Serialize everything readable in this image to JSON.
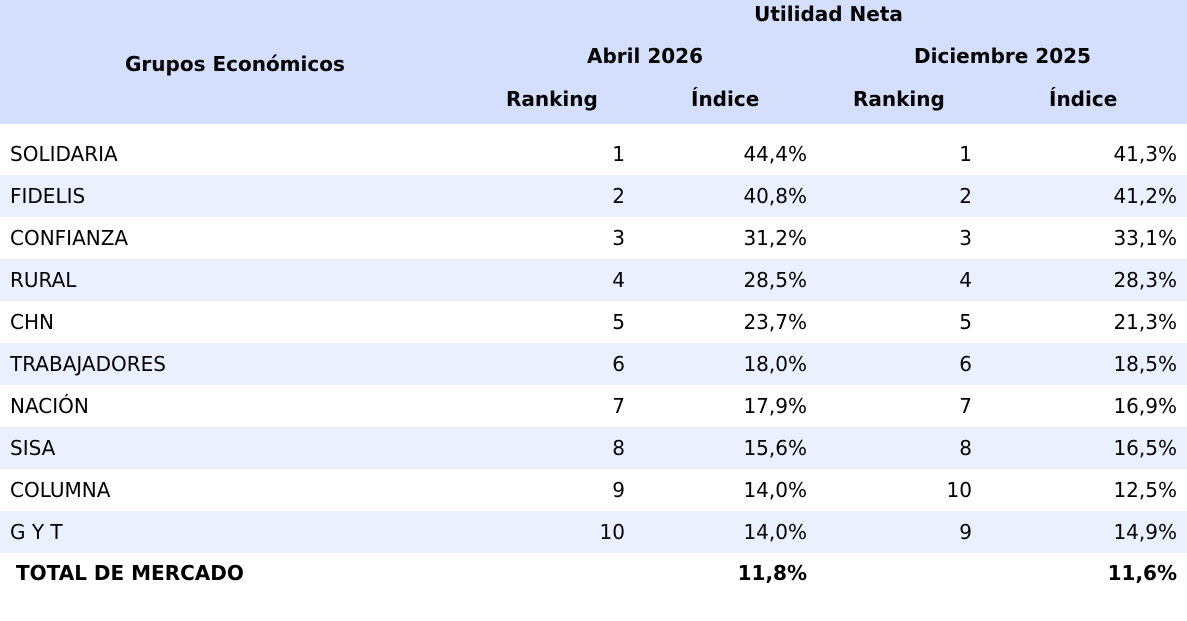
{
  "header": {
    "group_label": "Grupos Económicos",
    "metric_label": "Utilidad Neta",
    "period_1": "Abril 2026",
    "period_2": "Diciembre 2025",
    "ranking_label": "Ranking",
    "index_label": "Índice"
  },
  "rows": [
    {
      "name": "SOLIDARIA",
      "rank_abr": "1",
      "index_abr": "44,4%",
      "rank_dic": "1",
      "index_dic": "41,3%"
    },
    {
      "name": "FIDELIS",
      "rank_abr": "2",
      "index_abr": "40,8%",
      "rank_dic": "2",
      "index_dic": "41,2%"
    },
    {
      "name": "CONFIANZA",
      "rank_abr": "3",
      "index_abr": "31,2%",
      "rank_dic": "3",
      "index_dic": "33,1%"
    },
    {
      "name": "RURAL",
      "rank_abr": "4",
      "index_abr": "28,5%",
      "rank_dic": "4",
      "index_dic": "28,3%"
    },
    {
      "name": "CHN",
      "rank_abr": "5",
      "index_abr": "23,7%",
      "rank_dic": "5",
      "index_dic": "21,3%"
    },
    {
      "name": "TRABAJADORES",
      "rank_abr": "6",
      "index_abr": "18,0%",
      "rank_dic": "6",
      "index_dic": "18,5%"
    },
    {
      "name": "NACIÓN",
      "rank_abr": "7",
      "index_abr": "17,9%",
      "rank_dic": "7",
      "index_dic": "16,9%"
    },
    {
      "name": "SISA",
      "rank_abr": "8",
      "index_abr": "15,6%",
      "rank_dic": "8",
      "index_dic": "16,5%"
    },
    {
      "name": "COLUMNA",
      "rank_abr": "9",
      "index_abr": "14,0%",
      "rank_dic": "10",
      "index_dic": "12,5%"
    },
    {
      "name": "G Y T",
      "rank_abr": "10",
      "index_abr": "14,0%",
      "rank_dic": "9",
      "index_dic": "14,9%"
    }
  ],
  "total": {
    "label": "TOTAL DE MERCADO",
    "index_abr": "11,8%",
    "index_dic": "11,6%"
  },
  "colors": {
    "header_bg": "#d3dffc",
    "alt_row_bg": "#eaf0fd"
  }
}
